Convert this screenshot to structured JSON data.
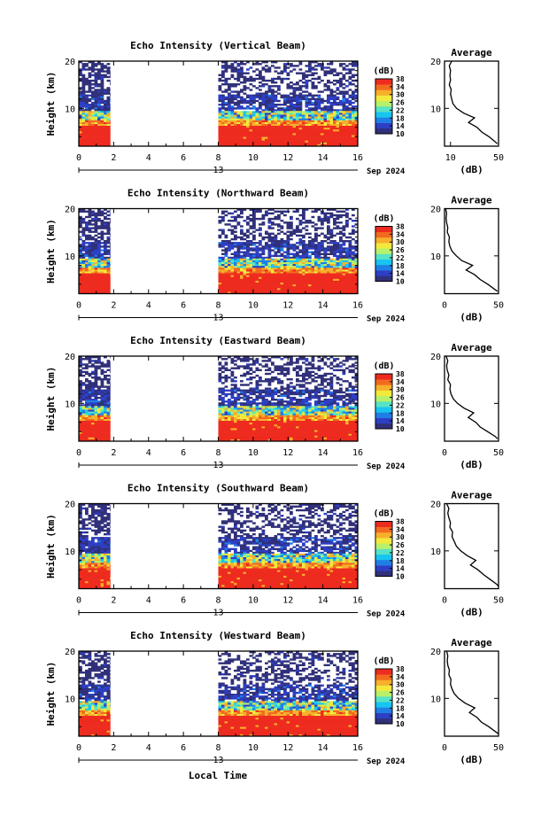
{
  "figure": {
    "xlabel": "Local Time",
    "date_label": "13",
    "month_label": "Sep 2024"
  },
  "colorbar": {
    "unit": "(dB)",
    "range": [
      10,
      38
    ],
    "ticks": [
      10,
      14,
      18,
      22,
      26,
      30,
      34,
      38
    ],
    "colors": [
      "#30307a",
      "#2d3fc4",
      "#1f7fe6",
      "#18c4f0",
      "#57e3c6",
      "#b7f06a",
      "#f2e93c",
      "#f7b02b",
      "#f26a20",
      "#ee2b1f"
    ]
  },
  "average_panel": {
    "title": "Average",
    "xlabel": "(dB)"
  },
  "chart_data": [
    {
      "type": "heatmap",
      "title": "Echo Intensity (Vertical Beam)",
      "ylabel": "Height (km)",
      "xlim": [
        0,
        16
      ],
      "ylim": [
        2,
        20
      ],
      "xticks": [
        0,
        2,
        4,
        6,
        8,
        10,
        12,
        14,
        16
      ],
      "yticks": [
        10,
        20
      ],
      "data_gaps_x": [
        [
          1.8,
          8.0
        ]
      ],
      "average": {
        "xlim": [
          5,
          50
        ],
        "xticks": [
          10,
          50
        ],
        "height": [
          2.5,
          3,
          4,
          5,
          6,
          7,
          8,
          9,
          10,
          11,
          12,
          13,
          14,
          15,
          16,
          17,
          18,
          19,
          20
        ],
        "db": [
          49,
          47,
          42,
          36,
          32,
          25,
          30,
          21,
          15,
          12,
          11,
          10,
          10.5,
          9,
          10,
          9.5,
          10,
          9,
          11
        ]
      }
    },
    {
      "type": "heatmap",
      "title": "Echo Intensity (Northward Beam)",
      "ylabel": "Height (km)",
      "xlim": [
        0,
        16
      ],
      "ylim": [
        2,
        20
      ],
      "xticks": [
        0,
        2,
        4,
        6,
        8,
        10,
        12,
        14,
        16
      ],
      "yticks": [
        10,
        20
      ],
      "data_gaps_x": [
        [
          1.8,
          8.0
        ]
      ],
      "average": {
        "xlim": [
          0,
          50
        ],
        "xticks": [
          0,
          50
        ],
        "height": [
          2.5,
          3,
          4,
          5,
          6,
          7,
          8,
          9,
          10,
          11,
          12,
          13,
          14,
          15,
          16,
          17,
          18,
          19,
          20
        ],
        "db": [
          49,
          46,
          40,
          33,
          28,
          20,
          26,
          16,
          11,
          7,
          5,
          4,
          4.5,
          2.5,
          3,
          2,
          1.5,
          2,
          1
        ]
      }
    },
    {
      "type": "heatmap",
      "title": "Echo Intensity (Eastward Beam)",
      "ylabel": "Height (km)",
      "xlim": [
        0,
        16
      ],
      "ylim": [
        2,
        20
      ],
      "xticks": [
        0,
        2,
        4,
        6,
        8,
        10,
        12,
        14,
        16
      ],
      "yticks": [
        10,
        20
      ],
      "data_gaps_x": [
        [
          1.8,
          8.0
        ]
      ],
      "average": {
        "xlim": [
          0,
          50
        ],
        "xticks": [
          0,
          50
        ],
        "height": [
          2.5,
          3,
          4,
          5,
          6,
          7,
          8,
          9,
          10,
          11,
          12,
          13,
          14,
          15,
          16,
          17,
          18,
          19,
          20
        ],
        "db": [
          49,
          47,
          40,
          33,
          29,
          22,
          27,
          18,
          12,
          8,
          6,
          5,
          5.5,
          3,
          4,
          2.5,
          2,
          3,
          1.5
        ]
      }
    },
    {
      "type": "heatmap",
      "title": "Echo Intensity (Southward Beam)",
      "ylabel": "Height (km)",
      "xlim": [
        0,
        16
      ],
      "ylim": [
        2,
        20
      ],
      "xticks": [
        0,
        2,
        4,
        6,
        8,
        10,
        12,
        14,
        16
      ],
      "yticks": [
        10,
        20
      ],
      "data_gaps_x": [
        [
          1.8,
          8.0
        ]
      ],
      "average": {
        "xlim": [
          0,
          50
        ],
        "xticks": [
          0,
          50
        ],
        "height": [
          2.5,
          3,
          4,
          5,
          6,
          7,
          8,
          9,
          10,
          11,
          12,
          13,
          14,
          15,
          16,
          17,
          18,
          19,
          20
        ],
        "db": [
          50,
          48,
          42,
          36,
          31,
          24,
          29,
          21,
          15,
          11,
          9,
          7,
          7.5,
          5,
          5.5,
          4,
          3,
          4,
          2
        ]
      }
    },
    {
      "type": "heatmap",
      "title": "Echo Intensity (Westward Beam)",
      "ylabel": "Height (km)",
      "xlim": [
        0,
        16
      ],
      "ylim": [
        2,
        20
      ],
      "xticks": [
        0,
        2,
        4,
        6,
        8,
        10,
        12,
        14,
        16
      ],
      "yticks": [
        10,
        20
      ],
      "data_gaps_x": [
        [
          1.8,
          8.0
        ]
      ],
      "average": {
        "xlim": [
          0,
          50
        ],
        "xticks": [
          0,
          50
        ],
        "height": [
          2.5,
          3,
          4,
          5,
          6,
          7,
          8,
          9,
          10,
          11,
          12,
          13,
          14,
          15,
          16,
          17,
          18,
          19,
          20
        ],
        "db": [
          50,
          47,
          41,
          34,
          30,
          23,
          28,
          19,
          13,
          9,
          7,
          5.5,
          6,
          4,
          4.5,
          3,
          2.5,
          3,
          2
        ]
      }
    }
  ]
}
